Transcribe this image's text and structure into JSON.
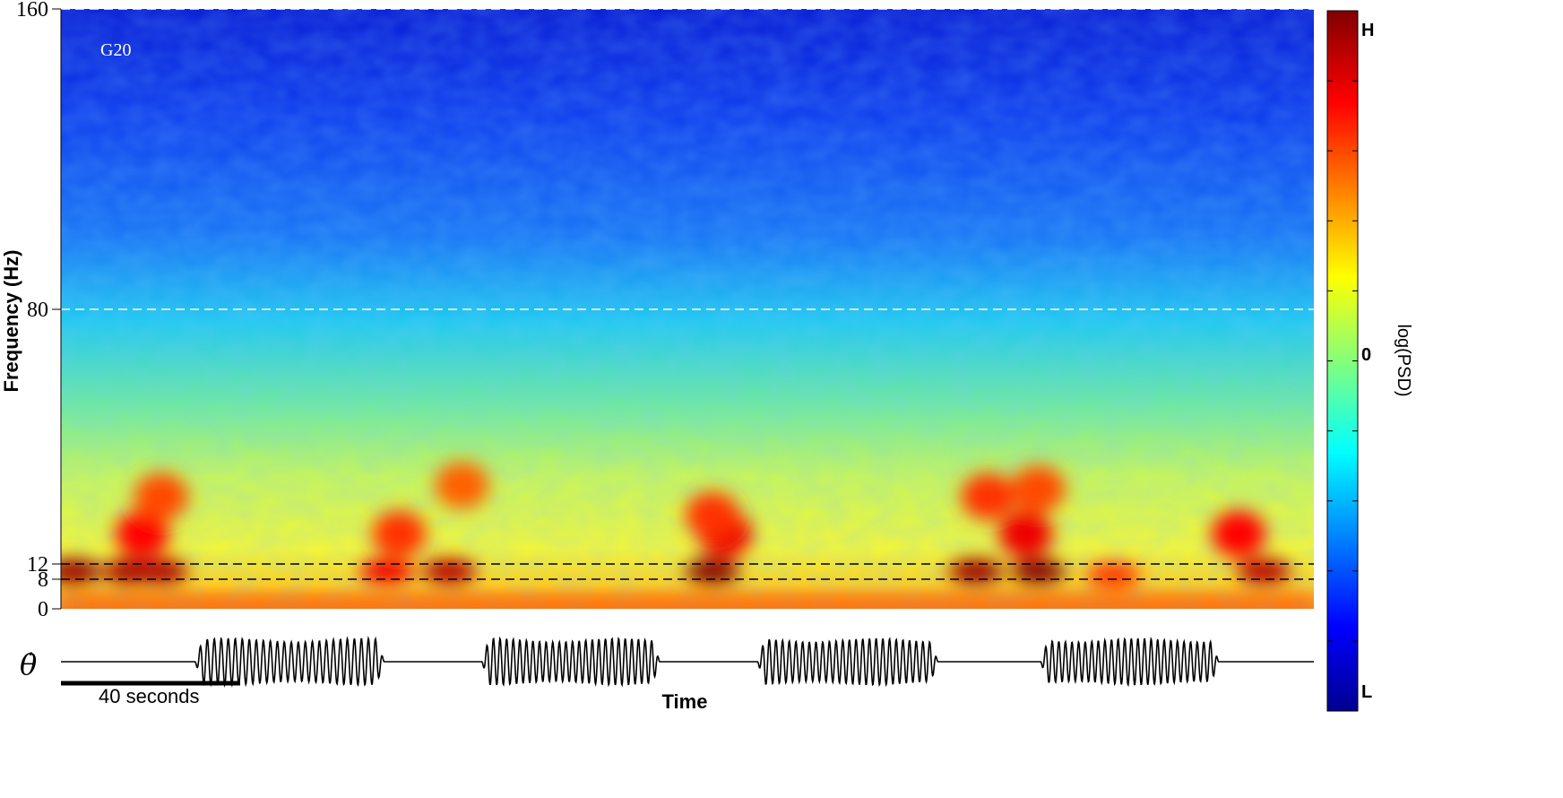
{
  "chart_data": [
    {
      "type": "heatmap",
      "panel_label": "G20",
      "ylabel": "Frequency (Hz)",
      "xlabel": "Time",
      "y_ticks": [
        "0",
        "8",
        "12",
        "80",
        "160"
      ],
      "y_tick_values": [
        0,
        8,
        12,
        80,
        160
      ],
      "ylim": [
        0,
        160
      ],
      "reference_lines": [
        {
          "y": 160,
          "color": "#ffffff",
          "style": "dashed"
        },
        {
          "y": 80,
          "color": "#ffffff",
          "style": "dashed"
        },
        {
          "y": 12,
          "color": "#000000",
          "style": "dashed"
        },
        {
          "y": 8,
          "color": "#000000",
          "style": "dashed"
        }
      ],
      "hotspots": [
        {
          "t": 0.01,
          "f": 10,
          "level": 0.95
        },
        {
          "t": 0.055,
          "f": 10,
          "level": 0.92
        },
        {
          "t": 0.08,
          "f": 10,
          "level": 0.9
        },
        {
          "t": 0.065,
          "f": 20,
          "level": 0.7
        },
        {
          "t": 0.08,
          "f": 30,
          "level": 0.55
        },
        {
          "t": 0.26,
          "f": 10,
          "level": 0.75
        },
        {
          "t": 0.31,
          "f": 10,
          "level": 0.88
        },
        {
          "t": 0.27,
          "f": 20,
          "level": 0.6
        },
        {
          "t": 0.32,
          "f": 33,
          "level": 0.5
        },
        {
          "t": 0.52,
          "f": 10,
          "level": 1.0
        },
        {
          "t": 0.53,
          "f": 20,
          "level": 0.75
        },
        {
          "t": 0.52,
          "f": 25,
          "level": 0.6
        },
        {
          "t": 0.73,
          "f": 10,
          "level": 0.95
        },
        {
          "t": 0.78,
          "f": 10,
          "level": 1.0
        },
        {
          "t": 0.77,
          "f": 20,
          "level": 0.75
        },
        {
          "t": 0.74,
          "f": 30,
          "level": 0.6
        },
        {
          "t": 0.78,
          "f": 32,
          "level": 0.55
        },
        {
          "t": 0.96,
          "f": 10,
          "level": 0.88
        },
        {
          "t": 0.94,
          "f": 20,
          "level": 0.7
        },
        {
          "t": 0.84,
          "f": 9,
          "level": 0.6
        }
      ]
    },
    {
      "type": "line",
      "label": "θ̇",
      "xlabel": "Time",
      "scale_bar_label": "40 seconds",
      "oscillation_bursts": [
        {
          "start": 0.107,
          "end": 0.258
        },
        {
          "start": 0.336,
          "end": 0.478
        },
        {
          "start": 0.556,
          "end": 0.7
        },
        {
          "start": 0.782,
          "end": 0.924
        }
      ]
    }
  ],
  "colorbar": {
    "title": "log(PSD)",
    "labels": [
      "H",
      "0",
      "L"
    ],
    "colors": [
      "#00008f",
      "#0000ff",
      "#00ffff",
      "#ffff00",
      "#ff0000",
      "#800000"
    ]
  }
}
